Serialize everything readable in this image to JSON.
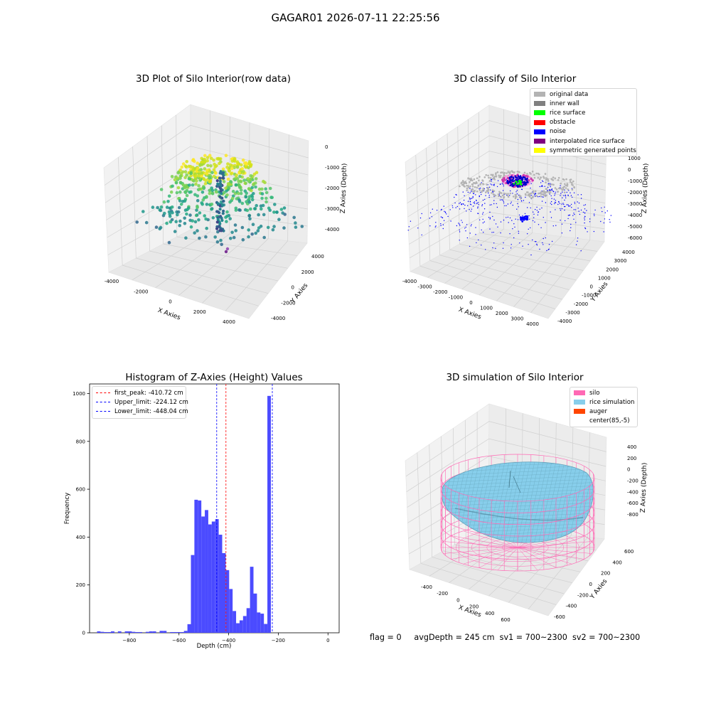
{
  "figure_title": "GAGAR01 2026-07-11 22:25:56",
  "footer": {
    "flag": "flag = 0",
    "avg_depth": "avgDepth = 245 cm",
    "sv1": "sv1 = 700~2300",
    "sv2": "sv2 = 700~2300"
  },
  "colors": {
    "hist_bar": "#4b4bff",
    "first_peak": "#ff0000",
    "limits": "#0000ff",
    "silo": "#ff69b4",
    "rice": "#87ceeb",
    "auger": "#ff4500",
    "noise": "#0000ff",
    "original": "#b3b3b3"
  },
  "chart_data": [
    {
      "type": "scatter",
      "subtype": "3d",
      "title": "3D Plot of Silo Interior(row data)",
      "xlabel": "X Axies",
      "ylabel": "Y Axies",
      "zlabel": "Z Axies (Depth)",
      "xlim": [
        -4500,
        4500
      ],
      "ylim": [
        -4500,
        4500
      ],
      "zlim": [
        -4700,
        200
      ],
      "x_ticks": [
        "-4000",
        "-2000",
        "0",
        "2000",
        "4000"
      ],
      "y_ticks": [
        "-4000",
        "-2000",
        "0",
        "2000",
        "4000"
      ],
      "z_ticks": [
        "0",
        "-1000",
        "-2000",
        "-3000",
        "-4000"
      ],
      "colormap": "viridis (by depth)",
      "grid": true
    },
    {
      "type": "scatter",
      "subtype": "3d",
      "title": "3D classify of Silo Interior",
      "xlabel": "X Axies",
      "ylabel": "Y Axies",
      "zlabel": "Z Axies (Depth)",
      "x_ticks": [
        "-4000",
        "-3000",
        "-2000",
        "-1000",
        "0",
        "1000",
        "2000",
        "3000",
        "4000"
      ],
      "y_ticks": [
        "-4000",
        "-3000",
        "-2000",
        "-1000",
        "0",
        "1000",
        "2000",
        "3000",
        "4000"
      ],
      "z_ticks": [
        "1000",
        "0",
        "-1000",
        "-2000",
        "-3000",
        "-4000",
        "-5000",
        "-6000"
      ],
      "z_ticks_clipped": [
        "2000"
      ],
      "legend": [
        {
          "label": "original data",
          "color": "#b3b3b3"
        },
        {
          "label": "inner wall",
          "color": "#808080"
        },
        {
          "label": "rice surface",
          "color": "#00ff00"
        },
        {
          "label": "obstacle",
          "color": "#ff0000"
        },
        {
          "label": "noise",
          "color": "#0000ff"
        },
        {
          "label": "interpolated rice surface",
          "color": "#800080"
        },
        {
          "label": "symmetric generated points",
          "color": "#ffff00"
        }
      ],
      "legend_placement": "upper-right",
      "grid": true
    },
    {
      "type": "bar",
      "subtype": "histogram",
      "title": "Histogram of Z-Axies (Height) Values",
      "xlabel": "Depth (cm)",
      "ylabel": "Frequency",
      "xlim": [
        -960,
        45
      ],
      "ylim": [
        0,
        1040
      ],
      "x_ticks": [
        -800,
        -600,
        -400,
        -200,
        0
      ],
      "y_ticks": [
        0,
        200,
        400,
        600,
        800,
        1000
      ],
      "bin_edges_start": -930,
      "bin_width": 14,
      "values": [
        6,
        4,
        3,
        3,
        6,
        0,
        6,
        0,
        6,
        6,
        4,
        3,
        3,
        0,
        4,
        6,
        6,
        0,
        8,
        8,
        0,
        3,
        3,
        3,
        3,
        8,
        36,
        325,
        556,
        553,
        486,
        513,
        453,
        465,
        475,
        410,
        333,
        262,
        183,
        91,
        40,
        52,
        70,
        103,
        276,
        164,
        85,
        80,
        37,
        990
      ],
      "vlines": [
        {
          "label": "first_peak: -410.72 cm",
          "x": -410.72,
          "color": "#ff0000"
        },
        {
          "label": "Upper_limit: -224.12 cm",
          "x": -224.12,
          "color": "#0000ff"
        },
        {
          "label": "Lower_limit: -448.04 cm",
          "x": -448.04,
          "color": "#0000ff"
        }
      ],
      "legend_placement": "upper-left"
    },
    {
      "type": "surface",
      "subtype": "3d",
      "title": "3D simulation of Silo Interior",
      "xlabel": "X Axies",
      "ylabel": "Y Axies",
      "zlabel": "Z Axies (Depth)",
      "x_ticks": [
        "-400",
        "-200",
        "0",
        "200",
        "400",
        "600"
      ],
      "y_ticks": [
        "600",
        "400",
        "200",
        "0",
        "-200",
        "-400",
        "-600"
      ],
      "z_ticks": [
        "400",
        "200",
        "0",
        "-200",
        "-400",
        "-600",
        "-800"
      ],
      "legend": [
        {
          "label": "silo",
          "color": "#ff69b4"
        },
        {
          "label": "rice simulation",
          "color": "#87ceeb"
        },
        {
          "label": "auger",
          "color": "#ff4500"
        },
        {
          "label": "center(85,-5)",
          "color": "#ffffff"
        }
      ],
      "legend_placement": "upper-right",
      "grid": true
    }
  ]
}
